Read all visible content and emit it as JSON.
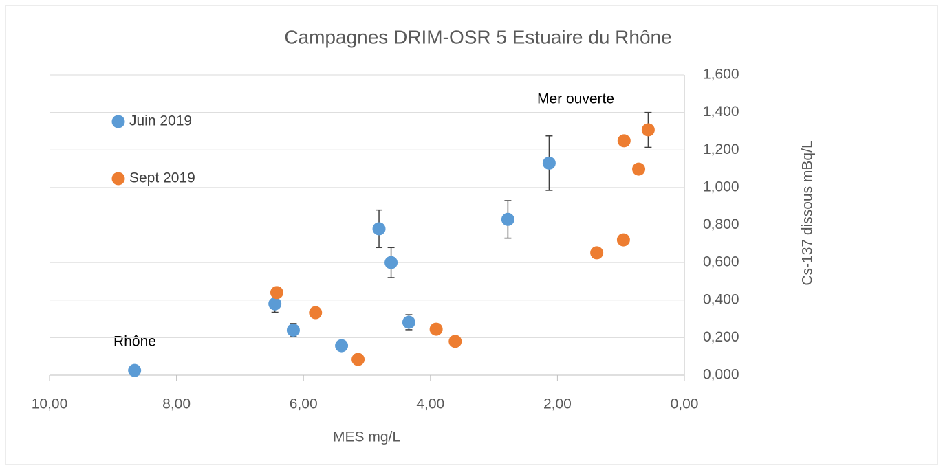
{
  "chart_data": {
    "type": "scatter",
    "title": "Campagnes DRIM-OSR 5 Estuaire du Rhône",
    "x_label": "MES mg/L",
    "y_label": "Cs-137 dissous  mBq/L",
    "annotations": [
      "Rhône",
      "Mer ouverte"
    ],
    "xlim": [
      10,
      0
    ],
    "ylim": [
      0,
      1.6
    ],
    "xticks": [
      {
        "value": 10,
        "label": "10,00"
      },
      {
        "value": 8,
        "label": "8,00"
      },
      {
        "value": 6,
        "label": "6,00"
      },
      {
        "value": 4,
        "label": "4,00"
      },
      {
        "value": 2,
        "label": "2,00"
      },
      {
        "value": 0,
        "label": "0,00"
      }
    ],
    "yticks": [
      {
        "value": 0,
        "label": "0,000"
      },
      {
        "value": 0.2,
        "label": "0,200"
      },
      {
        "value": 0.4,
        "label": "0,400"
      },
      {
        "value": 0.6,
        "label": "0,600"
      },
      {
        "value": 0.8,
        "label": "0,800"
      },
      {
        "value": 1.0,
        "label": "1,000"
      },
      {
        "value": 1.2,
        "label": "1,200"
      },
      {
        "value": 1.4,
        "label": "1,400"
      },
      {
        "value": 1.6,
        "label": "1,600"
      }
    ],
    "y_axis_side": "right",
    "grid": true,
    "legend": "upper left",
    "series": [
      {
        "name": "Juin 2019",
        "color": "#5b9bd5",
        "x": [
          8.66,
          6.45,
          6.16,
          5.4,
          4.81,
          4.62,
          4.34,
          2.78,
          2.13
        ],
        "values": [
          0.025,
          0.38,
          0.24,
          0.157,
          0.78,
          0.6,
          0.282,
          0.83,
          1.13
        ],
        "errors": [
          null,
          0.045,
          0.035,
          null,
          0.1,
          0.08,
          0.04,
          0.1,
          0.145
        ]
      },
      {
        "name": "Sept 2019",
        "color": "#ed7d31",
        "x": [
          6.42,
          5.81,
          5.14,
          3.91,
          3.61,
          1.38,
          0.96,
          0.95,
          0.72,
          0.57
        ],
        "values": [
          0.44,
          0.333,
          0.084,
          0.245,
          0.18,
          0.652,
          0.721,
          1.249,
          1.098,
          1.307
        ],
        "errors": [
          null,
          null,
          null,
          null,
          null,
          null,
          null,
          null,
          null,
          0.093
        ]
      }
    ]
  }
}
